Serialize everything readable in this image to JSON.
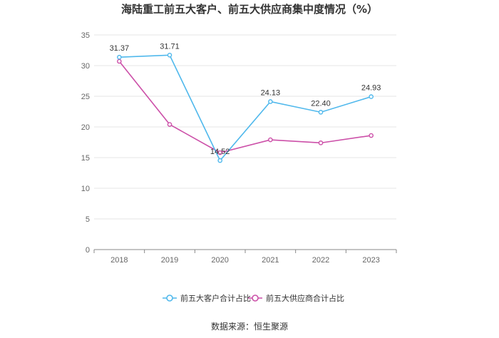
{
  "chart_data": {
    "type": "line",
    "title": "海陆重工前五大客户、前五大供应商集中度情况（%）",
    "categories": [
      "2018",
      "2019",
      "2020",
      "2021",
      "2022",
      "2023"
    ],
    "ylim": [
      0,
      35
    ],
    "yticks": [
      0,
      5,
      10,
      15,
      20,
      25,
      30,
      35
    ],
    "grid": true,
    "legend_position": "bottom",
    "series": [
      {
        "name": "前五大客户合计占比",
        "color": "#4fb8ec",
        "values": [
          31.37,
          31.71,
          14.52,
          24.13,
          22.4,
          24.93
        ],
        "labels": [
          "31.37",
          "31.71",
          "14.52",
          "24.13",
          "22.40",
          "24.93"
        ]
      },
      {
        "name": "前五大供应商合计占比",
        "color": "#cc4fa8",
        "values": [
          30.7,
          20.4,
          15.8,
          17.9,
          17.4,
          18.6
        ],
        "labels": null
      }
    ],
    "source": "数据来源：恒生聚源"
  }
}
